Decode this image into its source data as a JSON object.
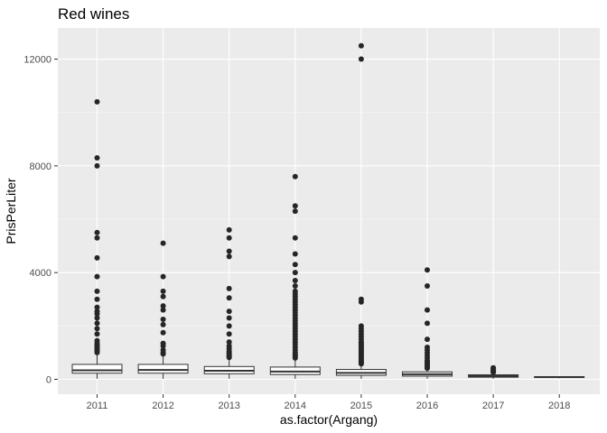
{
  "chart_data": {
    "type": "boxplot",
    "title": "Red wines",
    "xlabel": "as.factor(Argang)",
    "ylabel": "PrisPerLiter",
    "categories": [
      "2011",
      "2012",
      "2013",
      "2014",
      "2015",
      "2016",
      "2017",
      "2018"
    ],
    "y_ticks": [
      0,
      4000,
      8000,
      12000
    ],
    "y_tick_labels": [
      "0",
      "4000",
      "8000",
      "12000"
    ],
    "ylim": [
      -450,
      13000
    ],
    "grid": true,
    "boxes": [
      {
        "category": "2011",
        "whisker_low": 20,
        "q1": 230,
        "median": 340,
        "q3": 560,
        "whisker_high": 960,
        "outliers": [
          1000,
          1050,
          1100,
          1150,
          1200,
          1250,
          1300,
          1350,
          1450,
          1700,
          1900,
          2100,
          2300,
          2450,
          2550,
          2700,
          3000,
          3300,
          3850,
          4550,
          5300,
          5500,
          8000,
          8300,
          10400
        ]
      },
      {
        "category": "2012",
        "whisker_low": 20,
        "q1": 230,
        "median": 350,
        "q3": 560,
        "whisker_high": 900,
        "outliers": [
          950,
          1000,
          1100,
          1250,
          1350,
          1750,
          2050,
          2250,
          2600,
          2750,
          3100,
          3300,
          3850,
          5100
        ]
      },
      {
        "category": "2013",
        "whisker_low": 20,
        "q1": 210,
        "median": 320,
        "q3": 480,
        "whisker_high": 800,
        "outliers": [
          820,
          860,
          900,
          950,
          1000,
          1050,
          1150,
          1250,
          1400,
          1700,
          2000,
          2300,
          2550,
          3050,
          3400,
          4600,
          4800,
          5300,
          5600
        ]
      },
      {
        "category": "2014",
        "whisker_low": 20,
        "q1": 180,
        "median": 290,
        "q3": 460,
        "whisker_high": 780,
        "outliers": [
          800,
          850,
          900,
          950,
          1000,
          1100,
          1200,
          1300,
          1400,
          1500,
          1600,
          1700,
          1800,
          1900,
          2000,
          2100,
          2200,
          2300,
          2400,
          2500,
          2600,
          2700,
          2800,
          2900,
          3000,
          3100,
          3200,
          3300,
          3500,
          3700,
          4000,
          4300,
          4700,
          5300,
          6300,
          6500,
          7600
        ]
      },
      {
        "category": "2015",
        "whisker_low": 20,
        "q1": 150,
        "median": 240,
        "q3": 370,
        "whisker_high": 560,
        "outliers": [
          580,
          620,
          660,
          700,
          750,
          800,
          850,
          900,
          950,
          1000,
          1050,
          1100,
          1150,
          1200,
          1250,
          1300,
          1350,
          1400,
          1500,
          1600,
          1700,
          1800,
          1900,
          2000,
          2900,
          3000,
          12000,
          12500
        ]
      },
      {
        "category": "2016",
        "whisker_low": 20,
        "q1": 120,
        "median": 190,
        "q3": 280,
        "whisker_high": 400,
        "outliers": [
          420,
          450,
          500,
          550,
          600,
          650,
          700,
          800,
          900,
          1000,
          1100,
          1200,
          1500,
          2100,
          2600,
          3500,
          4100
        ]
      },
      {
        "category": "2017",
        "whisker_low": 20,
        "q1": 80,
        "median": 120,
        "q3": 170,
        "whisker_high": 240,
        "outliers": [
          260,
          280,
          300,
          330,
          360,
          400,
          430
        ]
      },
      {
        "category": "2018",
        "whisker_low": 40,
        "q1": 70,
        "median": 85,
        "q3": 100,
        "whisker_high": 120,
        "outliers": []
      }
    ]
  }
}
